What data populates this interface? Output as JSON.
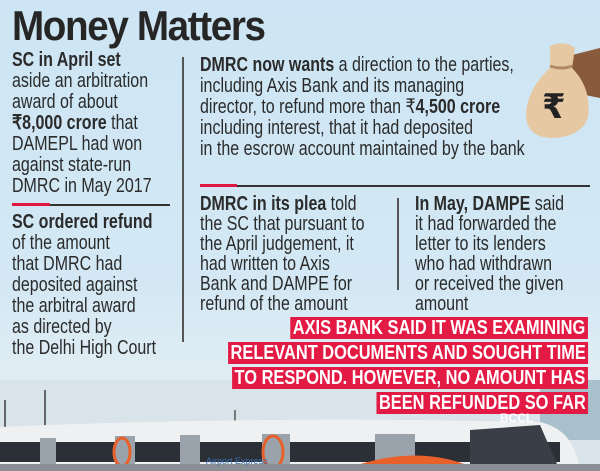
{
  "title": "Money Matters",
  "left": {
    "b1_bold": "SC in April set",
    "b1_l2": "aside an arbitration",
    "b1_l3": "award of about",
    "b1_amount": "₹8,000 crore",
    "b1_l4": " that",
    "b1_l5": "DAMEPL had won",
    "b1_l6": "against state-run",
    "b1_l7": "DMRC in May 2017",
    "b2_bold": "SC ordered refund",
    "b2_l2": "of the amount",
    "b2_l3": "that DMRC had",
    "b2_l4": "deposited against",
    "b2_l5": "the arbitral award",
    "b2_l6": "as directed by",
    "b2_l7": "the Delhi High Court"
  },
  "middle": {
    "b3_bold": "DMRC now wants",
    "b3_l1": " a direction to the parties,",
    "b3_l2": "including Axis Bank and its managing",
    "b3_l3": "director, to refund more than ₹",
    "b3_amount": "4,500 crore",
    "b3_l4": "including interest, that it had deposited",
    "b3_l5": "in the escrow account maintained by the bank",
    "b4_bold": "DMRC in its plea",
    "b4_l1": " told",
    "b4_l2": "the SC that pursuant to",
    "b4_l3": "the April judgement, it",
    "b4_l4": "had written to Axis",
    "b4_l5": "Bank and DAMPE for",
    "b4_l6": "refund of the amount",
    "b5_bold": "In May, DAMPE",
    "b5_l1": " said",
    "b5_l2": "it had forwarded the",
    "b5_l3": "letter to its lenders",
    "b5_l4": "who had withdrawn",
    "b5_l5": "or received the given",
    "b5_l6": "amount"
  },
  "banner": [
    "AXIS BANK SAID IT WAS EXAMINING",
    "RELEVANT DOCUMENTS AND SOUGHT TIME",
    "TO RESPOND. HOWEVER, NO AMOUNT HAS",
    "BEEN REFUNDED SO FAR"
  ],
  "credit": "BCCL",
  "train_label": "Airport Express",
  "colors": {
    "accent": "#e31b44",
    "background": "#cde5f4",
    "train_orange": "#e8602a"
  },
  "icons": [
    "money-bag-rupee-icon"
  ]
}
